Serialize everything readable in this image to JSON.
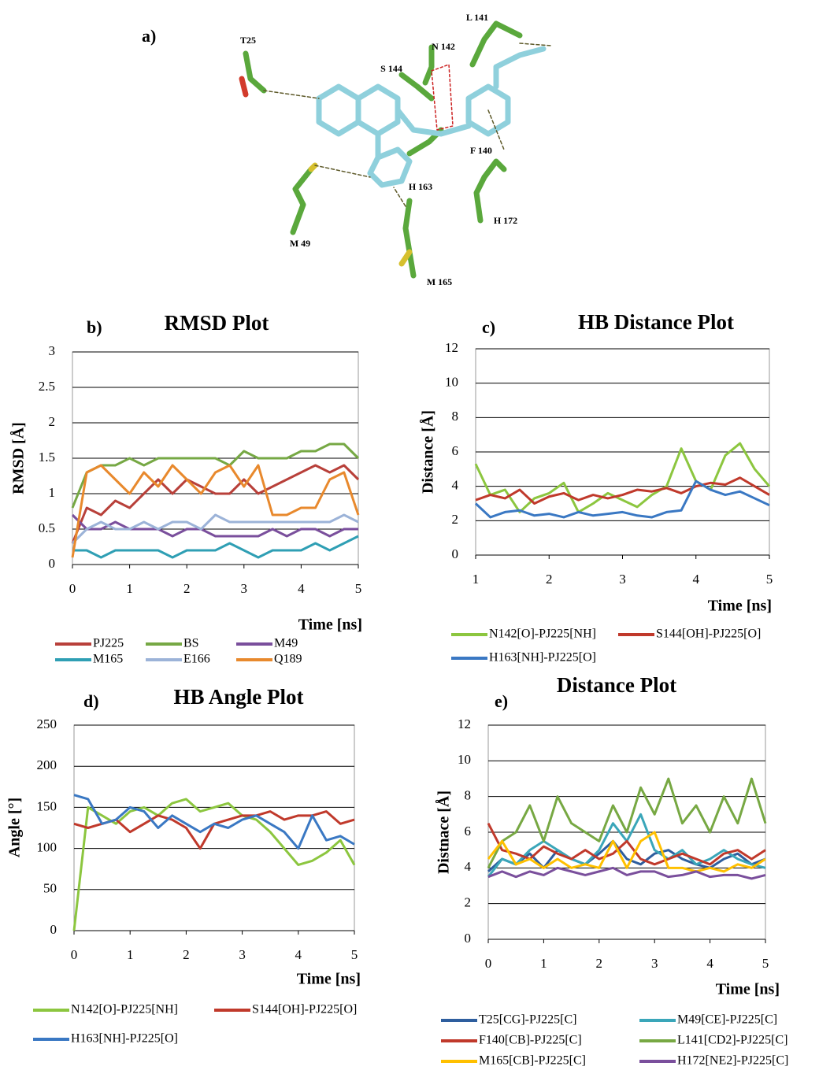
{
  "figure_a": {
    "panel_label": "a)",
    "residues": [
      "T25",
      "L 141",
      "N 142",
      "S 144",
      "F 140",
      "H 163",
      "H 172",
      "M 49",
      "M 165"
    ]
  },
  "chart_data": [
    {
      "type": "line",
      "panel_label": "b)",
      "title": "RMSD Plot",
      "x_label": "Time [ns]",
      "y_label": "RMSD [Å]",
      "x": [
        0,
        0.25,
        0.5,
        0.75,
        1,
        1.25,
        1.5,
        1.75,
        2,
        2.25,
        2.5,
        2.75,
        3,
        3.25,
        3.5,
        3.75,
        4,
        4.25,
        4.5,
        4.75,
        5
      ],
      "xlim": [
        0,
        5
      ],
      "xticks": [
        0,
        1,
        2,
        3,
        4,
        5
      ],
      "ylim": [
        0,
        3
      ],
      "yticks": [
        0,
        0.5,
        1,
        1.5,
        2,
        2.5,
        3
      ],
      "grid": true,
      "series": [
        {
          "name": "PJ225",
          "color": "#b8403a",
          "values": [
            0.3,
            0.8,
            0.7,
            0.9,
            0.8,
            1.0,
            1.2,
            1.0,
            1.2,
            1.1,
            1.0,
            1.0,
            1.2,
            1.0,
            1.1,
            1.2,
            1.3,
            1.4,
            1.3,
            1.4,
            1.2
          ]
        },
        {
          "name": "BS",
          "color": "#76a844",
          "values": [
            0.8,
            1.3,
            1.4,
            1.4,
            1.5,
            1.4,
            1.5,
            1.5,
            1.5,
            1.5,
            1.5,
            1.4,
            1.6,
            1.5,
            1.5,
            1.5,
            1.6,
            1.6,
            1.7,
            1.7,
            1.5
          ]
        },
        {
          "name": "M49",
          "color": "#7a4f9c",
          "values": [
            0.7,
            0.5,
            0.5,
            0.6,
            0.5,
            0.5,
            0.5,
            0.4,
            0.5,
            0.5,
            0.4,
            0.4,
            0.4,
            0.4,
            0.5,
            0.4,
            0.5,
            0.5,
            0.4,
            0.5,
            0.5
          ]
        },
        {
          "name": "M165",
          "color": "#2f9fb4",
          "values": [
            0.2,
            0.2,
            0.1,
            0.2,
            0.2,
            0.2,
            0.2,
            0.1,
            0.2,
            0.2,
            0.2,
            0.3,
            0.2,
            0.1,
            0.2,
            0.2,
            0.2,
            0.3,
            0.2,
            0.3,
            0.4
          ]
        },
        {
          "name": "E166",
          "color": "#9cb3d8",
          "values": [
            0.3,
            0.5,
            0.6,
            0.5,
            0.5,
            0.6,
            0.5,
            0.6,
            0.6,
            0.5,
            0.7,
            0.6,
            0.6,
            0.6,
            0.6,
            0.6,
            0.6,
            0.6,
            0.6,
            0.7,
            0.6
          ]
        },
        {
          "name": "Q189",
          "color": "#e8892d",
          "values": [
            0.1,
            1.3,
            1.4,
            1.2,
            1.0,
            1.3,
            1.1,
            1.4,
            1.2,
            1.0,
            1.3,
            1.4,
            1.1,
            1.4,
            0.7,
            0.7,
            0.8,
            0.8,
            1.2,
            1.3,
            0.7
          ]
        }
      ]
    },
    {
      "type": "line",
      "panel_label": "c)",
      "title": "HB Distance Plot",
      "x_label": "Time [ns]",
      "y_label": "Distance [Å]",
      "x": [
        1,
        1.2,
        1.4,
        1.6,
        1.8,
        2,
        2.2,
        2.4,
        2.6,
        2.8,
        3,
        3.2,
        3.4,
        3.6,
        3.8,
        4,
        4.2,
        4.4,
        4.6,
        4.8,
        5
      ],
      "xlim": [
        1,
        5
      ],
      "xticks": [
        1,
        2,
        3,
        4,
        5
      ],
      "ylim": [
        0,
        12
      ],
      "yticks": [
        0,
        2,
        4,
        6,
        8,
        10,
        12
      ],
      "grid": true,
      "series": [
        {
          "name": "N142[O]-PJ225[NH]",
          "color": "#8cc63f",
          "values": [
            5.3,
            3.5,
            3.8,
            2.5,
            3.3,
            3.6,
            4.2,
            2.5,
            3.0,
            3.6,
            3.2,
            2.8,
            3.5,
            4.0,
            6.2,
            4.3,
            3.8,
            5.8,
            6.5,
            5.0,
            4.0
          ]
        },
        {
          "name": "S144[OH]-PJ225[O]",
          "color": "#c0392b",
          "values": [
            3.2,
            3.5,
            3.3,
            3.8,
            3.0,
            3.4,
            3.6,
            3.2,
            3.5,
            3.3,
            3.5,
            3.8,
            3.7,
            3.9,
            3.6,
            4.0,
            4.2,
            4.1,
            4.5,
            4.0,
            3.5
          ]
        },
        {
          "name": "H163[NH]-PJ225[O]",
          "color": "#3a78c3",
          "values": [
            3.0,
            2.2,
            2.5,
            2.6,
            2.3,
            2.4,
            2.2,
            2.5,
            2.3,
            2.4,
            2.5,
            2.3,
            2.2,
            2.5,
            2.6,
            4.3,
            3.8,
            3.5,
            3.7,
            3.3,
            2.9
          ]
        }
      ]
    },
    {
      "type": "line",
      "panel_label": "d)",
      "title": "HB Angle Plot",
      "x_label": "Time [ns]",
      "y_label": "Angle [°]",
      "x": [
        0,
        0.25,
        0.5,
        0.75,
        1,
        1.25,
        1.5,
        1.75,
        2,
        2.25,
        2.5,
        2.75,
        3,
        3.25,
        3.5,
        3.75,
        4,
        4.25,
        4.5,
        4.75,
        5
      ],
      "xlim": [
        0,
        5
      ],
      "xticks": [
        0,
        1,
        2,
        3,
        4,
        5
      ],
      "ylim": [
        0,
        250
      ],
      "yticks": [
        0,
        50,
        100,
        150,
        200,
        250
      ],
      "grid": true,
      "series": [
        {
          "name": "N142[O]-PJ225[NH]",
          "color": "#8cc63f",
          "values": [
            0,
            150,
            140,
            130,
            145,
            150,
            140,
            155,
            160,
            145,
            150,
            155,
            140,
            135,
            120,
            100,
            80,
            85,
            95,
            110,
            80
          ]
        },
        {
          "name": "S144[OH]-PJ225[O]",
          "color": "#c0392b",
          "values": [
            130,
            125,
            130,
            135,
            120,
            130,
            140,
            135,
            125,
            100,
            130,
            135,
            140,
            140,
            145,
            135,
            140,
            140,
            145,
            130,
            135
          ]
        },
        {
          "name": "H163[NH]-PJ225[O]",
          "color": "#3a78c3",
          "values": [
            165,
            160,
            130,
            135,
            150,
            145,
            125,
            140,
            130,
            120,
            130,
            125,
            135,
            140,
            130,
            120,
            100,
            140,
            110,
            115,
            105
          ]
        }
      ]
    },
    {
      "type": "line",
      "panel_label": "e)",
      "title": "Distance Plot",
      "x_label": "Time [ns]",
      "y_label": "Distnace [Å]",
      "x": [
        0,
        0.25,
        0.5,
        0.75,
        1,
        1.25,
        1.5,
        1.75,
        2,
        2.25,
        2.5,
        2.75,
        3,
        3.25,
        3.5,
        3.75,
        4,
        4.25,
        4.5,
        4.75,
        5
      ],
      "xlim": [
        0,
        5
      ],
      "xticks": [
        0,
        1,
        2,
        3,
        4,
        5
      ],
      "ylim": [
        0,
        12
      ],
      "yticks": [
        0,
        2,
        4,
        6,
        8,
        10,
        12
      ],
      "grid": true,
      "series": [
        {
          "name": "T25[CG]-PJ225[C]",
          "color": "#2e5e9e",
          "values": [
            3.8,
            4.5,
            4.2,
            4.8,
            4.0,
            5.0,
            4.5,
            4.2,
            4.8,
            5.5,
            4.5,
            4.2,
            4.8,
            5.0,
            4.5,
            4.2,
            4.0,
            4.5,
            4.8,
            4.2,
            4.5
          ]
        },
        {
          "name": "M49[CE]-PJ225[C]",
          "color": "#3aa6b9",
          "values": [
            3.5,
            4.5,
            4.2,
            5.0,
            5.5,
            5.0,
            4.5,
            4.2,
            5.0,
            6.5,
            5.5,
            7.0,
            5.0,
            4.5,
            5.0,
            4.2,
            4.5,
            5.0,
            4.5,
            4.2,
            4.0
          ]
        },
        {
          "name": "F140[CB]-PJ225[C]",
          "color": "#c0392b",
          "values": [
            6.5,
            5.0,
            4.8,
            4.5,
            5.2,
            4.8,
            4.5,
            5.0,
            4.5,
            4.8,
            5.5,
            4.5,
            4.2,
            4.5,
            4.8,
            4.5,
            4.2,
            4.8,
            5.0,
            4.5,
            5.0
          ]
        },
        {
          "name": "L141[CD2]-PJ225[C]",
          "color": "#77a843",
          "values": [
            4.0,
            5.5,
            6.0,
            7.5,
            5.5,
            8.0,
            6.5,
            6.0,
            5.5,
            7.5,
            6.0,
            8.5,
            7.0,
            9.0,
            6.5,
            7.5,
            6.0,
            8.0,
            6.5,
            9.0,
            6.5
          ]
        },
        {
          "name": "M165[CB]-PJ225[C]",
          "color": "#ffc000",
          "values": [
            4.5,
            5.5,
            4.2,
            4.5,
            4.0,
            4.5,
            4.0,
            4.2,
            4.0,
            5.5,
            4.0,
            5.5,
            6.0,
            4.0,
            4.0,
            3.8,
            4.0,
            3.8,
            4.2,
            4.0,
            4.5
          ]
        },
        {
          "name": "H172[NE2]-PJ225[C]",
          "color": "#7a4f9c",
          "values": [
            3.5,
            3.8,
            3.5,
            3.8,
            3.6,
            4.0,
            3.8,
            3.6,
            3.8,
            4.0,
            3.6,
            3.8,
            3.8,
            3.5,
            3.6,
            3.8,
            3.5,
            3.6,
            3.6,
            3.4,
            3.6
          ]
        }
      ]
    }
  ]
}
